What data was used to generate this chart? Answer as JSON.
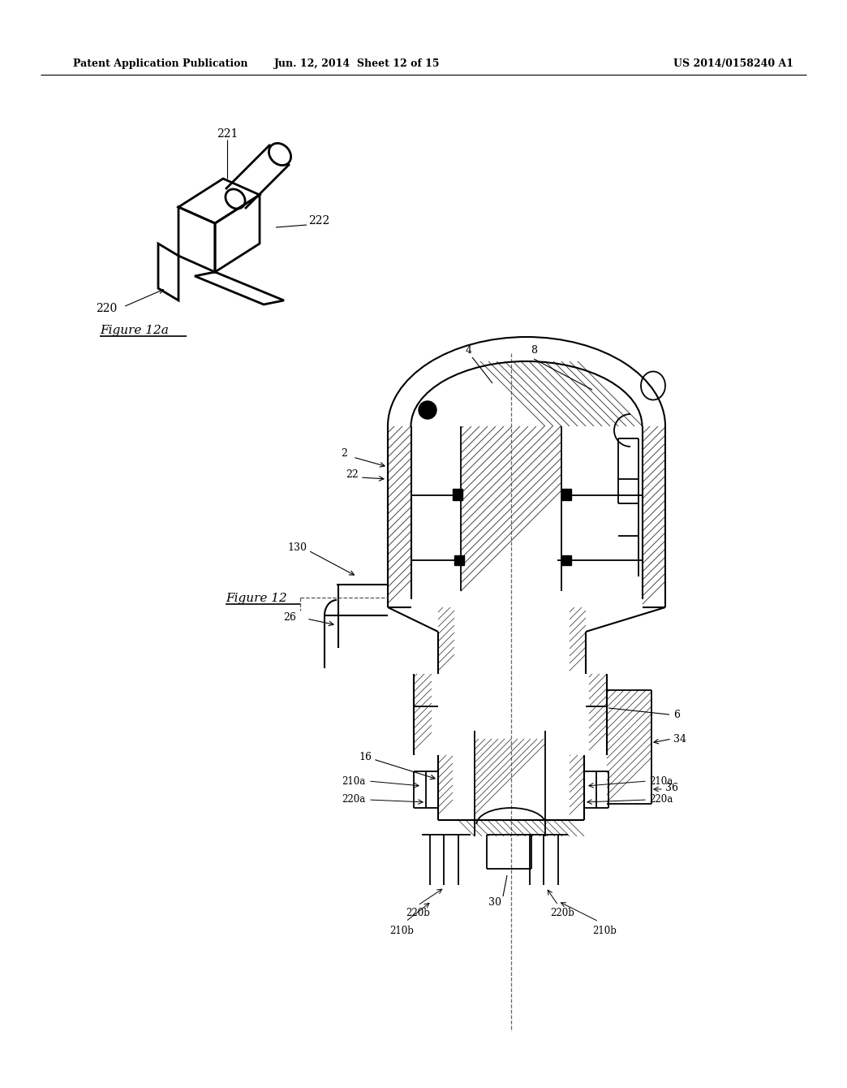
{
  "bg_color": "#ffffff",
  "header_left": "Patent Application Publication",
  "header_center": "Jun. 12, 2014  Sheet 12 of 15",
  "header_right": "US 2014/0158240 A1",
  "fig12a_label": "Figure 12a",
  "fig12_label": "Figure 12",
  "note": "All coordinates in axes fraction (0-1). Figure 12 is vertical cross-section, upper-right region. Figure 12a is 3D bracket sketch, upper-left region."
}
